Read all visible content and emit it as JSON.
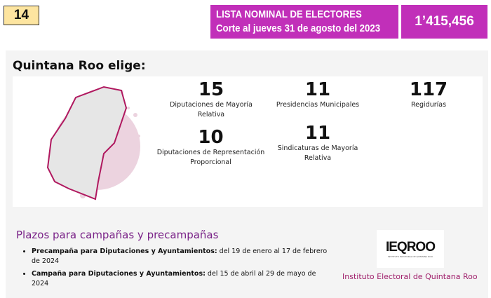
{
  "badge": "14",
  "lista": {
    "line1": "LISTA NOMINAL DE ELECTORES",
    "line2": "Corte al jueves 31 de agosto del 2023",
    "value": "1’415,456"
  },
  "title": "Quintana Roo elige:",
  "stats": [
    {
      "n": "15",
      "label": "Diputaciones de Mayoría Relativa"
    },
    {
      "n": "11",
      "label": "Presidencias Municipales"
    },
    {
      "n": "117",
      "label": "Regidurías"
    },
    {
      "n": "10",
      "label": "Diputaciones de Representación Proporcional"
    },
    {
      "n": "11",
      "label": "Sindicaturas de Mayoría Relativa"
    }
  ],
  "plazos": {
    "title": "Plazos para campañas y precampañas",
    "items": [
      {
        "bold": "Precampaña para Diputaciones y Ayuntamientos:",
        "text": " del 19 de enero al 17 de febrero de 2024"
      },
      {
        "bold": "Campaña para Diputaciones y Ayuntamientos:",
        "text": " del 15 de abril al 29 de mayo de 2024"
      }
    ]
  },
  "logo": {
    "text": "IEQROO",
    "sub": "INSTITUTO ELECTORAL DE QUINTANA ROO"
  },
  "institute": "Instituto Electoral de Quintana Roo"
}
